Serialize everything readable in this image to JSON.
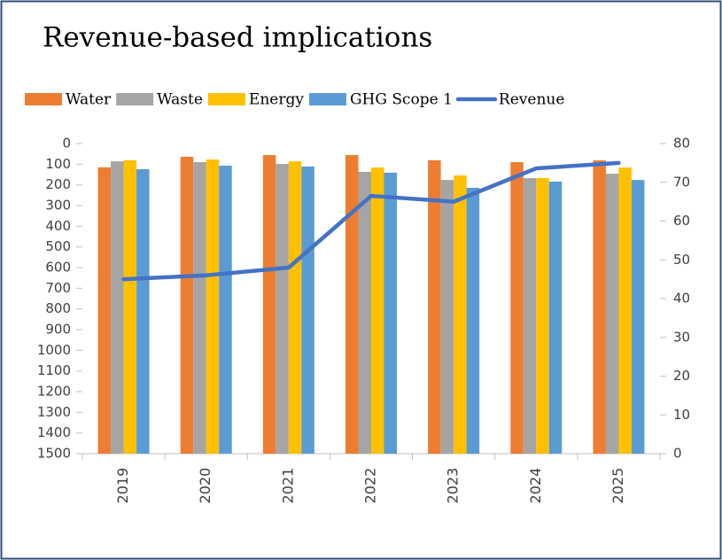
{
  "chart_data": {
    "type": "bar",
    "title": "Revenue-based implications",
    "categories": [
      "2019",
      "2020",
      "2021",
      "2022",
      "2023",
      "2024",
      "2025"
    ],
    "series": [
      {
        "name": "Water",
        "color": "#ED7D31",
        "values": [
          115,
          64,
          56,
          56,
          81,
          90,
          81
        ]
      },
      {
        "name": "Waste",
        "color": "#A5A5A5",
        "values": [
          86,
          90,
          99,
          137,
          176,
          167,
          146
        ]
      },
      {
        "name": "Energy",
        "color": "#FFC000",
        "values": [
          81,
          77,
          86,
          116,
          154,
          167,
          116
        ]
      },
      {
        "name": "GHG Scope 1",
        "color": "#5B9BD5",
        "values": [
          124,
          107,
          111,
          141,
          214,
          184,
          176
        ]
      },
      {
        "name": "Revenue",
        "type": "line",
        "axis": "y2",
        "color": "#4472C4",
        "values": [
          45,
          46,
          48,
          66.5,
          65,
          73.6,
          75
        ]
      }
    ],
    "ylim": [
      0,
      1500
    ],
    "y_reversed": true,
    "yticks": [
      0,
      100,
      200,
      300,
      400,
      500,
      600,
      700,
      800,
      900,
      1000,
      1100,
      1200,
      1300,
      1400,
      1500
    ],
    "y2lim": [
      0,
      80
    ],
    "y2ticks": [
      0,
      10,
      20,
      30,
      40,
      50,
      60,
      70,
      80
    ],
    "grid": false,
    "legend": "top"
  }
}
